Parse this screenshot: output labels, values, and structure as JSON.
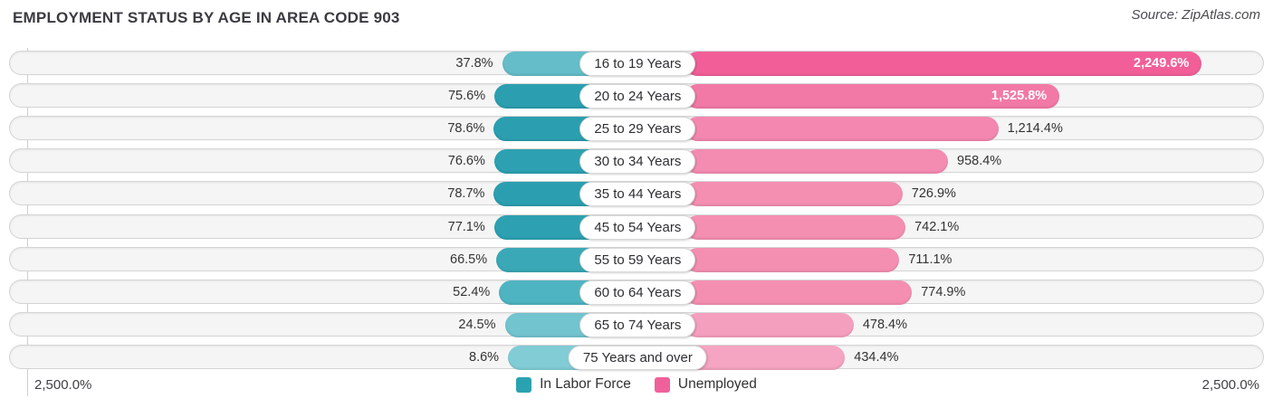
{
  "header": {
    "title": "EMPLOYMENT STATUS BY AGE IN AREA CODE 903",
    "source": "Source: ZipAtlas.com"
  },
  "axis": {
    "left_max": "2,500.0%",
    "right_max": "2,500.0%"
  },
  "legend": [
    {
      "label": "In Labor Force",
      "color": "#2aa2b2"
    },
    {
      "label": "Unemployed",
      "color": "#f0609a"
    }
  ],
  "chart_data": {
    "type": "bar",
    "orientation": "bidirectional-horizontal",
    "title": "Employment Status by Age in Area Code 903",
    "categories": [
      "16 to 19 Years",
      "20 to 24 Years",
      "25 to 29 Years",
      "30 to 34 Years",
      "35 to 44 Years",
      "45 to 54 Years",
      "55 to 59 Years",
      "60 to 64 Years",
      "65 to 74 Years",
      "75 Years and over"
    ],
    "axis_max_left": 2500.0,
    "axis_max_right": 2500.0,
    "series": [
      {
        "name": "In Labor Force",
        "values": [
          37.8,
          75.6,
          78.6,
          76.6,
          78.7,
          77.1,
          66.5,
          52.4,
          24.5,
          8.6
        ],
        "labels": [
          "37.8%",
          "75.6%",
          "78.6%",
          "76.6%",
          "78.7%",
          "77.1%",
          "66.5%",
          "52.4%",
          "24.5%",
          "8.6%"
        ],
        "colors": [
          "#64bdc9",
          "#2b9fb0",
          "#2b9fb0",
          "#2da1b1",
          "#2b9fb0",
          "#2da1b1",
          "#3aa8b6",
          "#4fb4c1",
          "#72c4cf",
          "#81ccd5"
        ]
      },
      {
        "name": "Unemployed",
        "values": [
          2249.6,
          1525.8,
          1214.4,
          958.4,
          726.9,
          742.1,
          711.1,
          774.9,
          478.4,
          434.4
        ],
        "labels": [
          "2,249.6%",
          "1,525.8%",
          "1,214.4%",
          "958.4%",
          "726.9%",
          "742.1%",
          "711.1%",
          "774.9%",
          "478.4%",
          "434.4%"
        ],
        "colors": [
          "#f25f98",
          "#f279a5",
          "#f487af",
          "#f48bb1",
          "#f48fb2",
          "#f48fb2",
          "#f48fb2",
          "#f48fb2",
          "#f59fbe",
          "#f5a4c1"
        ]
      }
    ]
  }
}
